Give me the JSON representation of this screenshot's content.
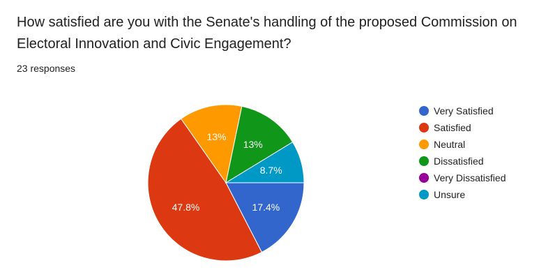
{
  "question": {
    "title": "How satisfied are you with the Senate's handling of the proposed Commission on Electoral Innovation and Civic Engagement?",
    "responses": "23 responses"
  },
  "chart_data": {
    "type": "pie",
    "legend_position": "right",
    "categories": [
      "Very Satisfied",
      "Satisfied",
      "Neutral",
      "Dissatisfied",
      "Very Dissatisfied",
      "Unsure"
    ],
    "values": [
      17.4,
      47.8,
      13,
      13,
      0,
      8.7
    ],
    "labels": [
      "17.4%",
      "47.8%",
      "13%",
      "13%",
      "",
      "8.7%"
    ],
    "colors": [
      "#3366cc",
      "#dc3912",
      "#ff9900",
      "#109618",
      "#990099",
      "#0099c6"
    ]
  }
}
